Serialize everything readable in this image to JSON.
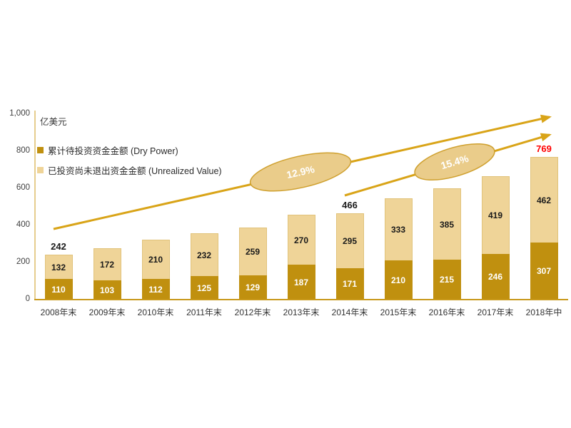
{
  "chart_data": {
    "type": "bar",
    "stacked": true,
    "title": "",
    "ylabel": "亿美元",
    "xlabel": "",
    "ylim": [
      0,
      1000
    ],
    "grid": false,
    "legend_position": "top-left",
    "categories": [
      "2008年末",
      "2009年末",
      "2010年末",
      "2011年末",
      "2012年末",
      "2013年末",
      "2014年末",
      "2015年末",
      "2016年末",
      "2017年末",
      "2018年中"
    ],
    "series": [
      {
        "name": "累计待投资资金金额 (Dry Power)",
        "color": "#C0900F",
        "label_color": "#FFFFFF",
        "values": [
          110,
          103,
          112,
          125,
          129,
          187,
          171,
          210,
          215,
          246,
          307
        ]
      },
      {
        "name": "已投资尚未退出资金金额 (Unrealized Value)",
        "color": "#EFD498",
        "label_color": "#1A1A1A",
        "values": [
          132,
          172,
          210,
          232,
          259,
          270,
          295,
          333,
          385,
          419,
          462
        ]
      }
    ],
    "stack_totals": [
      242,
      275,
      322,
      357,
      388,
      457,
      466,
      543,
      600,
      665,
      769
    ],
    "total_labels": [
      {
        "category_index": 0,
        "text": "242",
        "color": "#1A1A1A"
      },
      {
        "category_index": 6,
        "text": "466",
        "color": "#1A1A1A"
      },
      {
        "category_index": 10,
        "text": "769",
        "color": "#FF0000"
      }
    ],
    "yticks": [
      {
        "value": 0,
        "label": "0"
      },
      {
        "value": 200,
        "label": "200"
      },
      {
        "value": 400,
        "label": "400"
      },
      {
        "value": 600,
        "label": "600"
      },
      {
        "value": 800,
        "label": "800"
      },
      {
        "value": 1000,
        "label": "1,000"
      }
    ],
    "annotations": [
      {
        "type": "growth-arrow",
        "label": "12.9%",
        "arrow_color": "#D9A418",
        "ellipse_fill": "#EACC8A",
        "ellipse_stroke": "#CFA02E"
      },
      {
        "type": "growth-arrow",
        "label": "15.4%",
        "arrow_color": "#D9A418",
        "ellipse_fill": "#EACC8A",
        "ellipse_stroke": "#CFA02E"
      }
    ]
  }
}
